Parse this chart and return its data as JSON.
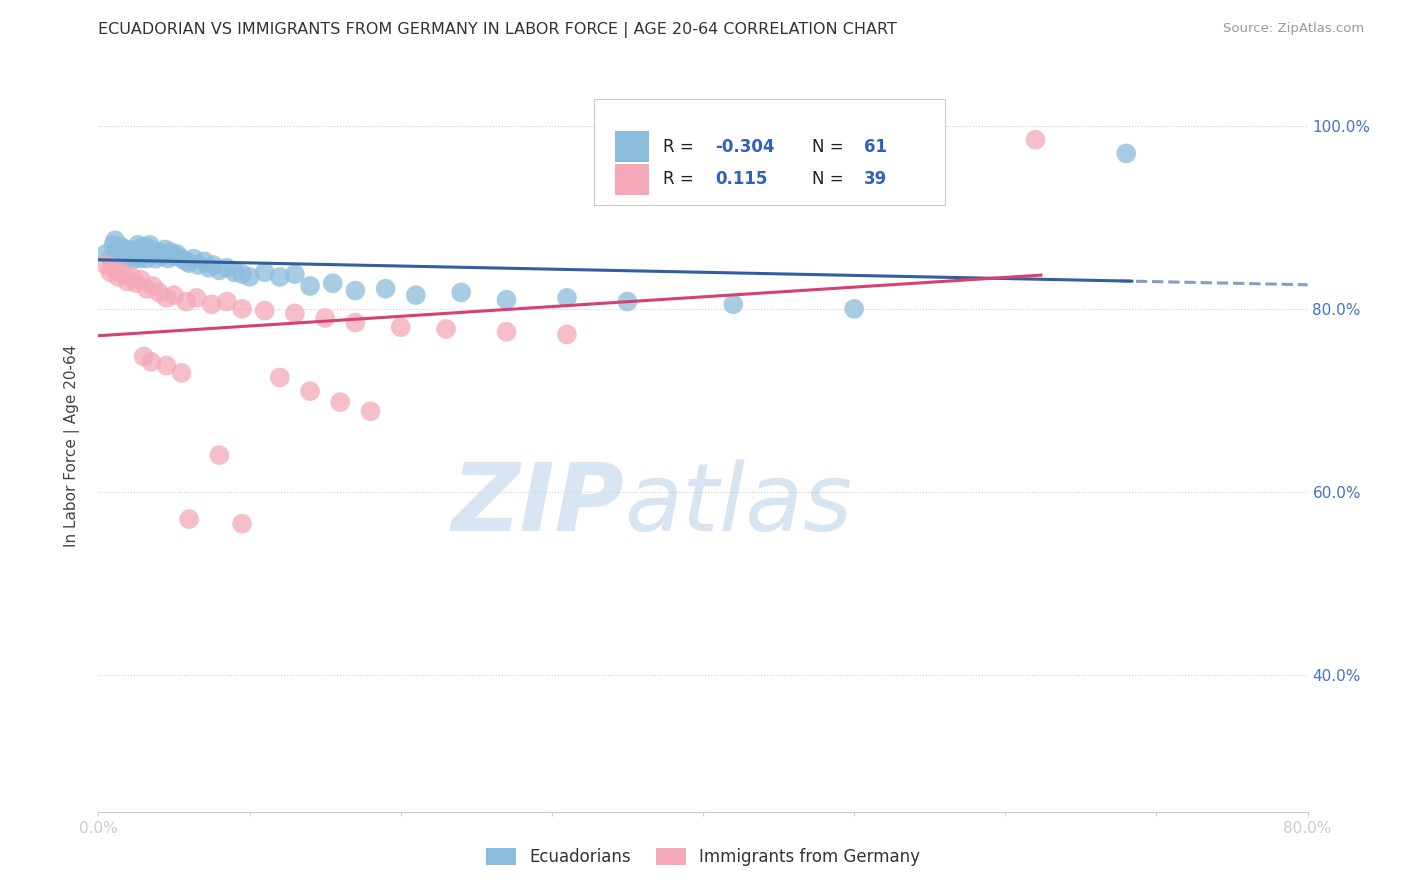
{
  "title": "ECUADORIAN VS IMMIGRANTS FROM GERMANY IN LABOR FORCE | AGE 20-64 CORRELATION CHART",
  "source": "Source: ZipAtlas.com",
  "ylabel": "In Labor Force | Age 20-64",
  "xlim": [
    0.0,
    0.8
  ],
  "ylim": [
    0.25,
    1.05
  ],
  "blue_color": "#8BBCDC",
  "pink_color": "#F4A8B8",
  "blue_line_color": "#3060A0",
  "pink_line_color": "#D84070",
  "legend_blue_R": "-0.304",
  "legend_blue_N": "61",
  "legend_pink_R": "0.115",
  "legend_pink_N": "39",
  "background_color": "#FFFFFF",
  "grid_color": "#CCCCCC",
  "blue_scatter_x": [
    0.005,
    0.008,
    0.01,
    0.011,
    0.012,
    0.013,
    0.015,
    0.016,
    0.017,
    0.018,
    0.019,
    0.02,
    0.021,
    0.022,
    0.023,
    0.025,
    0.026,
    0.027,
    0.028,
    0.03,
    0.031,
    0.032,
    0.034,
    0.035,
    0.037,
    0.038,
    0.04,
    0.042,
    0.044,
    0.046,
    0.048,
    0.05,
    0.052,
    0.055,
    0.058,
    0.06,
    0.063,
    0.066,
    0.07,
    0.073,
    0.076,
    0.08,
    0.085,
    0.09,
    0.095,
    0.1,
    0.11,
    0.12,
    0.13,
    0.14,
    0.155,
    0.17,
    0.19,
    0.21,
    0.24,
    0.27,
    0.31,
    0.35,
    0.42,
    0.5,
    0.68
  ],
  "blue_scatter_y": [
    0.86,
    0.855,
    0.87,
    0.875,
    0.862,
    0.858,
    0.868,
    0.862,
    0.855,
    0.865,
    0.858,
    0.862,
    0.856,
    0.86,
    0.854,
    0.865,
    0.87,
    0.858,
    0.855,
    0.868,
    0.862,
    0.855,
    0.87,
    0.865,
    0.86,
    0.855,
    0.862,
    0.858,
    0.865,
    0.855,
    0.862,
    0.858,
    0.86,
    0.855,
    0.852,
    0.85,
    0.855,
    0.848,
    0.852,
    0.845,
    0.848,
    0.842,
    0.845,
    0.84,
    0.838,
    0.835,
    0.84,
    0.835,
    0.838,
    0.825,
    0.828,
    0.82,
    0.822,
    0.815,
    0.818,
    0.81,
    0.812,
    0.808,
    0.805,
    0.8,
    0.97
  ],
  "pink_scatter_x": [
    0.005,
    0.008,
    0.01,
    0.013,
    0.016,
    0.019,
    0.022,
    0.025,
    0.028,
    0.032,
    0.036,
    0.04,
    0.045,
    0.05,
    0.058,
    0.065,
    0.075,
    0.085,
    0.095,
    0.11,
    0.13,
    0.15,
    0.17,
    0.2,
    0.23,
    0.27,
    0.31,
    0.12,
    0.14,
    0.16,
    0.045,
    0.055,
    0.03,
    0.035,
    0.62,
    0.18,
    0.095,
    0.08,
    0.06
  ],
  "pink_scatter_y": [
    0.848,
    0.84,
    0.845,
    0.835,
    0.84,
    0.83,
    0.835,
    0.828,
    0.832,
    0.822,
    0.825,
    0.818,
    0.812,
    0.815,
    0.808,
    0.812,
    0.805,
    0.808,
    0.8,
    0.798,
    0.795,
    0.79,
    0.785,
    0.78,
    0.778,
    0.775,
    0.772,
    0.725,
    0.71,
    0.698,
    0.738,
    0.73,
    0.748,
    0.742,
    0.985,
    0.688,
    0.565,
    0.64,
    0.57
  ],
  "watermark_zip": "ZIP",
  "watermark_atlas": "atlas"
}
